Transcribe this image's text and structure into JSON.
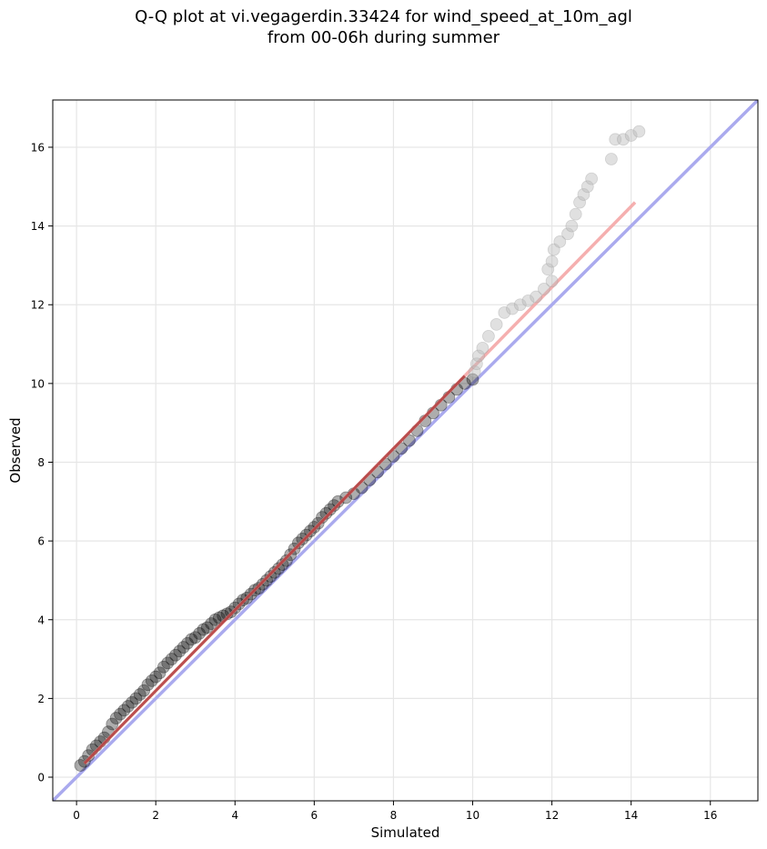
{
  "chart_data": {
    "type": "scatter",
    "title_lines": [
      "Q-Q plot at vi.vegagerdin.33424 for wind_speed_at_10m_agl",
      "from 00-06h during summer"
    ],
    "xlabel": "Simulated",
    "ylabel": "Observed",
    "xlim": [
      -0.6,
      17.2
    ],
    "ylim": [
      -0.6,
      17.2
    ],
    "xticks": [
      0,
      2,
      4,
      6,
      8,
      10,
      12,
      14,
      16
    ],
    "yticks": [
      0,
      2,
      4,
      6,
      8,
      10,
      12,
      14,
      16
    ],
    "grid": true,
    "legend": "none",
    "reference_line": {
      "color": "#aaaaee",
      "description": "1:1 line"
    },
    "fit_line": {
      "color": "#f4a6a6",
      "x": [
        0.2,
        14.1
      ],
      "y": [
        0.35,
        14.6
      ]
    },
    "point_colors": {
      "core": "#000000",
      "tail": "#bbbbbb"
    },
    "tail_threshold_x": 10.0,
    "series": [
      {
        "values": [
          [
            0.1,
            0.3
          ],
          [
            0.2,
            0.4
          ],
          [
            0.3,
            0.55
          ],
          [
            0.4,
            0.7
          ],
          [
            0.5,
            0.8
          ],
          [
            0.6,
            0.9
          ],
          [
            0.7,
            1.0
          ],
          [
            0.8,
            1.15
          ],
          [
            0.9,
            1.35
          ],
          [
            1.0,
            1.5
          ],
          [
            1.1,
            1.6
          ],
          [
            1.2,
            1.7
          ],
          [
            1.3,
            1.8
          ],
          [
            1.4,
            1.9
          ],
          [
            1.5,
            2.0
          ],
          [
            1.6,
            2.1
          ],
          [
            1.7,
            2.2
          ],
          [
            1.8,
            2.35
          ],
          [
            1.9,
            2.45
          ],
          [
            2.0,
            2.55
          ],
          [
            2.1,
            2.65
          ],
          [
            2.2,
            2.8
          ],
          [
            2.3,
            2.9
          ],
          [
            2.4,
            3.0
          ],
          [
            2.5,
            3.1
          ],
          [
            2.6,
            3.2
          ],
          [
            2.7,
            3.3
          ],
          [
            2.8,
            3.4
          ],
          [
            2.9,
            3.5
          ],
          [
            3.0,
            3.55
          ],
          [
            3.1,
            3.65
          ],
          [
            3.2,
            3.75
          ],
          [
            3.3,
            3.8
          ],
          [
            3.4,
            3.9
          ],
          [
            3.5,
            4.0
          ],
          [
            3.6,
            4.05
          ],
          [
            3.7,
            4.1
          ],
          [
            3.8,
            4.15
          ],
          [
            3.9,
            4.2
          ],
          [
            4.0,
            4.3
          ],
          [
            4.1,
            4.4
          ],
          [
            4.2,
            4.5
          ],
          [
            4.3,
            4.55
          ],
          [
            4.4,
            4.65
          ],
          [
            4.5,
            4.75
          ],
          [
            4.6,
            4.8
          ],
          [
            4.7,
            4.9
          ],
          [
            4.8,
            5.0
          ],
          [
            4.9,
            5.1
          ],
          [
            5.0,
            5.2
          ],
          [
            5.1,
            5.3
          ],
          [
            5.2,
            5.4
          ],
          [
            5.3,
            5.5
          ],
          [
            5.4,
            5.65
          ],
          [
            5.5,
            5.8
          ],
          [
            5.6,
            5.95
          ],
          [
            5.7,
            6.05
          ],
          [
            5.8,
            6.15
          ],
          [
            5.9,
            6.25
          ],
          [
            6.0,
            6.35
          ],
          [
            6.1,
            6.45
          ],
          [
            6.2,
            6.6
          ],
          [
            6.3,
            6.7
          ],
          [
            6.4,
            6.8
          ],
          [
            6.5,
            6.9
          ],
          [
            6.6,
            7.0
          ],
          [
            6.8,
            7.1
          ],
          [
            7.0,
            7.2
          ],
          [
            7.2,
            7.35
          ],
          [
            7.4,
            7.55
          ],
          [
            7.6,
            7.75
          ],
          [
            7.8,
            7.95
          ],
          [
            8.0,
            8.15
          ],
          [
            8.2,
            8.35
          ],
          [
            8.4,
            8.55
          ],
          [
            8.6,
            8.8
          ],
          [
            8.8,
            9.05
          ],
          [
            9.0,
            9.25
          ],
          [
            9.2,
            9.45
          ],
          [
            9.4,
            9.65
          ],
          [
            9.6,
            9.85
          ],
          [
            9.8,
            10.0
          ],
          [
            10.0,
            10.1
          ],
          [
            10.05,
            10.3
          ],
          [
            10.1,
            10.5
          ],
          [
            10.15,
            10.7
          ],
          [
            10.25,
            10.9
          ],
          [
            10.4,
            11.2
          ],
          [
            10.6,
            11.5
          ],
          [
            10.8,
            11.8
          ],
          [
            11.0,
            11.9
          ],
          [
            11.2,
            12.0
          ],
          [
            11.4,
            12.1
          ],
          [
            11.6,
            12.2
          ],
          [
            11.8,
            12.4
          ],
          [
            12.0,
            12.6
          ],
          [
            11.9,
            12.9
          ],
          [
            12.0,
            13.1
          ],
          [
            12.05,
            13.4
          ],
          [
            12.2,
            13.6
          ],
          [
            12.4,
            13.8
          ],
          [
            12.5,
            14.0
          ],
          [
            12.6,
            14.3
          ],
          [
            12.7,
            14.6
          ],
          [
            12.8,
            14.8
          ],
          [
            12.9,
            15.0
          ],
          [
            13.0,
            15.2
          ],
          [
            13.5,
            15.7
          ],
          [
            13.6,
            16.2
          ],
          [
            13.8,
            16.2
          ],
          [
            14.0,
            16.3
          ],
          [
            14.2,
            16.4
          ]
        ]
      }
    ]
  }
}
